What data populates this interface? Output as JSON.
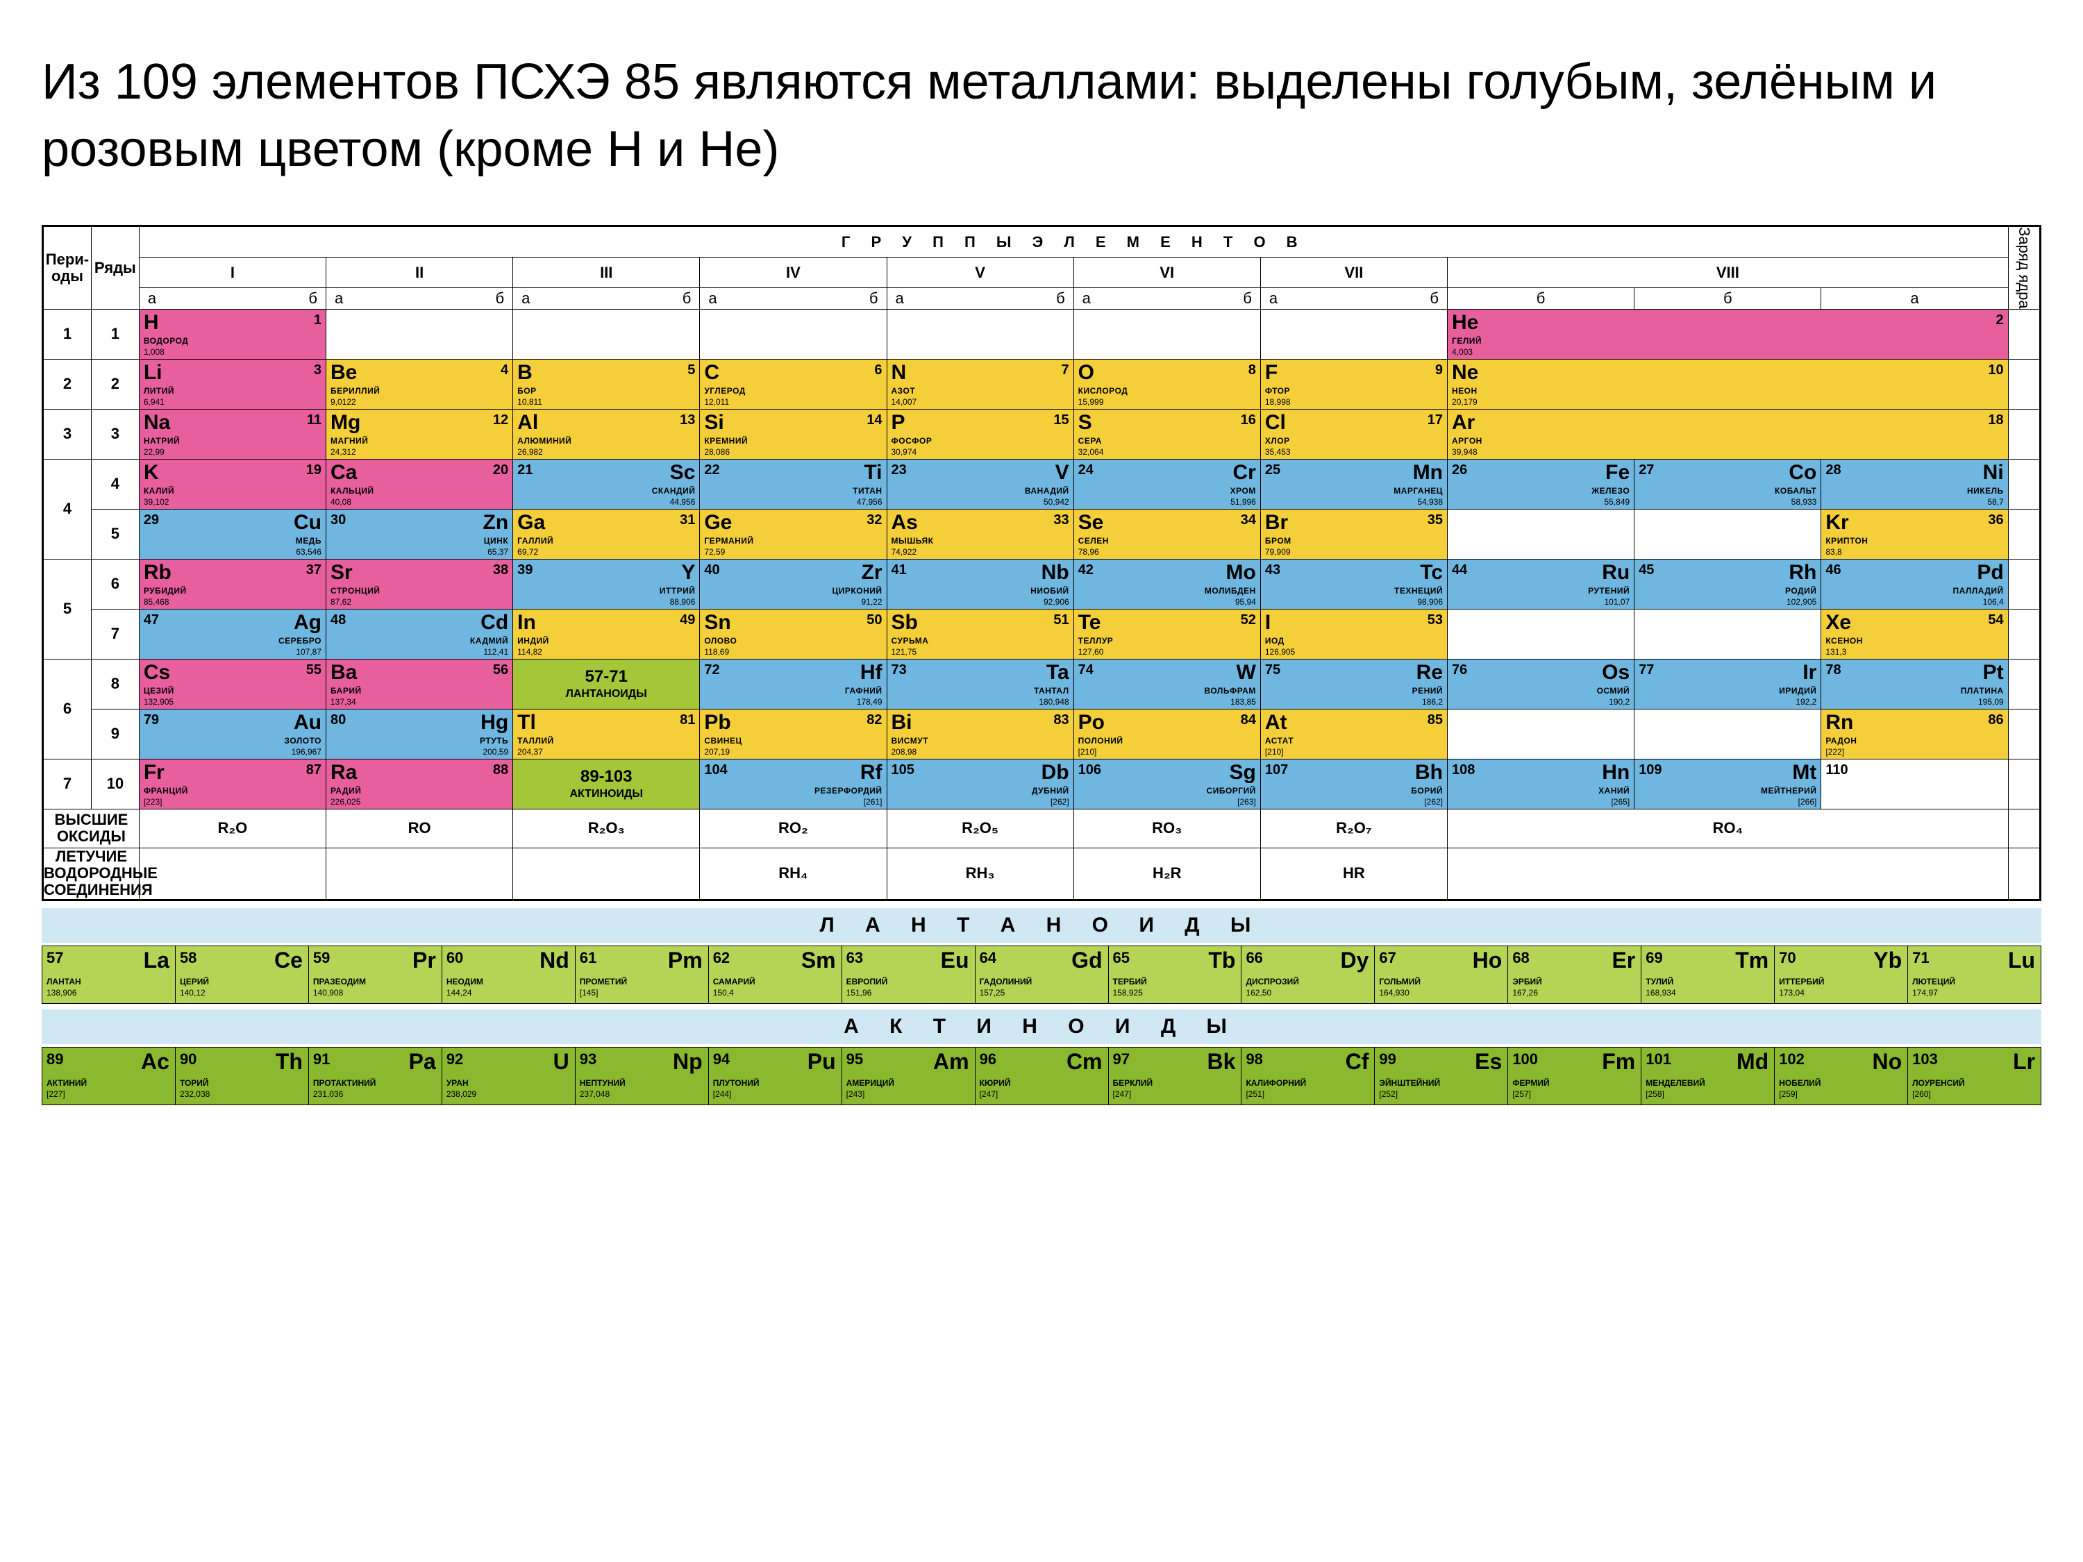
{
  "title": "Из 109 элементов ПСХЭ 85 являются металлами: выделены голубым, зелёным и розовым цветом (кроме H и He)",
  "colors": {
    "pink": "#e85f9e",
    "yellow": "#f4cf3a",
    "blue": "#6fb6e0",
    "green": "#a4c639",
    "dgreen": "#8ab82e",
    "white": "#ffffff",
    "lightband": "#cfe8f3"
  },
  "headers": {
    "periods": "Пери-\nоды",
    "rows": "Ряды",
    "groups_title": "Г Р У П П Ы   Э Л Е М Е Н Т О В",
    "groups": [
      "I",
      "II",
      "III",
      "IV",
      "V",
      "VI",
      "VII",
      "VIII"
    ],
    "sub": {
      "a": "а",
      "b": "б"
    },
    "right_side": "Заряд ядра"
  },
  "lan_cell_1": {
    "label": "57-71",
    "text": "ЛАНТАНОИДЫ"
  },
  "lan_cell_2": {
    "label": "89-103",
    "text": "АКТИНОИДЫ"
  },
  "oxides_label": "ВЫСШИЕ\nОКСИДЫ",
  "hydrides_label": "ЛЕТУЧИЕ\nВОДОРОДНЫЕ\nСОЕДИНЕНИЯ",
  "oxides": [
    "R₂O",
    "RO",
    "R₂O₃",
    "RO₂",
    "R₂O₅",
    "RO₃",
    "R₂O₇",
    "RO₄"
  ],
  "hydrides": [
    "",
    "",
    "",
    "RH₄",
    "RH₃",
    "H₂R",
    "HR",
    ""
  ],
  "series_titles": {
    "lan": "Л А Н Т А Н О И Д Ы",
    "act": "А К Т И Н О И Д Ы"
  },
  "lanthanides": [
    {
      "n": "57",
      "s": "La",
      "name": "ЛАНТАН",
      "m": "138,906"
    },
    {
      "n": "58",
      "s": "Ce",
      "name": "ЦЕРИЙ",
      "m": "140,12"
    },
    {
      "n": "59",
      "s": "Pr",
      "name": "ПРАЗЕОДИМ",
      "m": "140,908"
    },
    {
      "n": "60",
      "s": "Nd",
      "name": "НЕОДИМ",
      "m": "144,24"
    },
    {
      "n": "61",
      "s": "Pm",
      "name": "ПРОМЕТИЙ",
      "m": "[145]"
    },
    {
      "n": "62",
      "s": "Sm",
      "name": "САМАРИЙ",
      "m": "150,4"
    },
    {
      "n": "63",
      "s": "Eu",
      "name": "ЕВРОПИЙ",
      "m": "151,96"
    },
    {
      "n": "64",
      "s": "Gd",
      "name": "ГАДОЛИНИЙ",
      "m": "157,25"
    },
    {
      "n": "65",
      "s": "Tb",
      "name": "ТЕРБИЙ",
      "m": "158,925"
    },
    {
      "n": "66",
      "s": "Dy",
      "name": "ДИСПРОЗИЙ",
      "m": "162,50"
    },
    {
      "n": "67",
      "s": "Ho",
      "name": "ГОЛЬМИЙ",
      "m": "164,930"
    },
    {
      "n": "68",
      "s": "Er",
      "name": "ЭРБИЙ",
      "m": "167,26"
    },
    {
      "n": "69",
      "s": "Tm",
      "name": "ТУЛИЙ",
      "m": "168,934"
    },
    {
      "n": "70",
      "s": "Yb",
      "name": "ИТТЕРБИЙ",
      "m": "173,04"
    },
    {
      "n": "71",
      "s": "Lu",
      "name": "ЛЮТЕЦИЙ",
      "m": "174,97"
    }
  ],
  "actinides": [
    {
      "n": "89",
      "s": "Ac",
      "name": "АКТИНИЙ",
      "m": "[227]"
    },
    {
      "n": "90",
      "s": "Th",
      "name": "ТОРИЙ",
      "m": "232,038"
    },
    {
      "n": "91",
      "s": "Pa",
      "name": "ПРОТАКТИНИЙ",
      "m": "231,036"
    },
    {
      "n": "92",
      "s": "U",
      "name": "УРАН",
      "m": "238,029"
    },
    {
      "n": "93",
      "s": "Np",
      "name": "НЕПТУНИЙ",
      "m": "237,048"
    },
    {
      "n": "94",
      "s": "Pu",
      "name": "ПЛУТОНИЙ",
      "m": "[244]"
    },
    {
      "n": "95",
      "s": "Am",
      "name": "АМЕРИЦИЙ",
      "m": "[243]"
    },
    {
      "n": "96",
      "s": "Cm",
      "name": "КЮРИЙ",
      "m": "[247]"
    },
    {
      "n": "97",
      "s": "Bk",
      "name": "БЕРКЛИЙ",
      "m": "[247]"
    },
    {
      "n": "98",
      "s": "Cf",
      "name": "КАЛИФОРНИЙ",
      "m": "[251]"
    },
    {
      "n": "99",
      "s": "Es",
      "name": "ЭЙНШТЕЙНИЙ",
      "m": "[252]"
    },
    {
      "n": "100",
      "s": "Fm",
      "name": "ФЕРМИЙ",
      "m": "[257]"
    },
    {
      "n": "101",
      "s": "Md",
      "name": "МЕНДЕЛЕВИЙ",
      "m": "[258]"
    },
    {
      "n": "102",
      "s": "No",
      "name": "НОБЕЛИЙ",
      "m": "[259]"
    },
    {
      "n": "103",
      "s": "Lr",
      "name": "ЛОУРЕНСИЙ",
      "m": "[260]"
    }
  ],
  "rows": [
    {
      "period": "1",
      "row": "1",
      "cells": [
        {
          "g": 1,
          "sub": "a",
          "c": "pink",
          "n": "1",
          "s": "H",
          "name": "ВОДОРОД",
          "m": "1,008"
        },
        null,
        null,
        null,
        null,
        null,
        null,
        {
          "g": 8,
          "sub": "a",
          "span": 3,
          "c": "pink",
          "n": "2",
          "s": "He",
          "name": "ГЕЛИЙ",
          "m": "4,003"
        }
      ]
    },
    {
      "period": "2",
      "row": "2",
      "cells": [
        {
          "g": 1,
          "sub": "a",
          "c": "pink",
          "n": "3",
          "s": "Li",
          "name": "ЛИТИЙ",
          "m": "6,941"
        },
        {
          "g": 2,
          "sub": "a",
          "c": "yellow",
          "n": "4",
          "s": "Be",
          "name": "БЕРИЛЛИЙ",
          "m": "9,0122"
        },
        {
          "g": 3,
          "sub": "a",
          "c": "yellow",
          "n": "5",
          "s": "B",
          "name": "БОР",
          "m": "10,811"
        },
        {
          "g": 4,
          "sub": "a",
          "c": "yellow",
          "n": "6",
          "s": "C",
          "name": "УГЛЕРОД",
          "m": "12,011"
        },
        {
          "g": 5,
          "sub": "a",
          "c": "yellow",
          "n": "7",
          "s": "N",
          "name": "АЗОТ",
          "m": "14,007"
        },
        {
          "g": 6,
          "sub": "a",
          "c": "yellow",
          "n": "8",
          "s": "O",
          "name": "КИСЛОРОД",
          "m": "15,999"
        },
        {
          "g": 7,
          "sub": "a",
          "c": "yellow",
          "n": "9",
          "s": "F",
          "name": "ФТОР",
          "m": "18,998"
        },
        {
          "g": 8,
          "sub": "a",
          "span": 3,
          "c": "yellow",
          "n": "10",
          "s": "Ne",
          "name": "НЕОН",
          "m": "20,179"
        }
      ]
    },
    {
      "period": "3",
      "row": "3",
      "cells": [
        {
          "g": 1,
          "sub": "a",
          "c": "pink",
          "n": "11",
          "s": "Na",
          "name": "НАТРИЙ",
          "m": "22,99"
        },
        {
          "g": 2,
          "sub": "a",
          "c": "yellow",
          "n": "12",
          "s": "Mg",
          "name": "МАГНИЙ",
          "m": "24,312"
        },
        {
          "g": 3,
          "sub": "a",
          "c": "yellow",
          "n": "13",
          "s": "Al",
          "name": "АЛЮМИНИЙ",
          "m": "26,982"
        },
        {
          "g": 4,
          "sub": "a",
          "c": "yellow",
          "n": "14",
          "s": "Si",
          "name": "КРЕМНИЙ",
          "m": "28,086"
        },
        {
          "g": 5,
          "sub": "a",
          "c": "yellow",
          "n": "15",
          "s": "P",
          "name": "ФОСФОР",
          "m": "30,974"
        },
        {
          "g": 6,
          "sub": "a",
          "c": "yellow",
          "n": "16",
          "s": "S",
          "name": "СЕРА",
          "m": "32,064"
        },
        {
          "g": 7,
          "sub": "a",
          "c": "yellow",
          "n": "17",
          "s": "Cl",
          "name": "ХЛОР",
          "m": "35,453"
        },
        {
          "g": 8,
          "sub": "a",
          "span": 3,
          "c": "yellow",
          "n": "18",
          "s": "Ar",
          "name": "АРГОН",
          "m": "39,948"
        }
      ]
    },
    {
      "period": "4",
      "row": "4",
      "cells": [
        {
          "g": 1,
          "sub": "a",
          "c": "pink",
          "n": "19",
          "s": "K",
          "name": "КАЛИЙ",
          "m": "39,102"
        },
        {
          "g": 2,
          "sub": "a",
          "c": "pink",
          "n": "20",
          "s": "Ca",
          "name": "КАЛЬЦИЙ",
          "m": "40,08"
        },
        {
          "g": 3,
          "sub": "b",
          "c": "blue",
          "n": "21",
          "s": "Sc",
          "name": "СКАНДИЙ",
          "m": "44,956"
        },
        {
          "g": 4,
          "sub": "b",
          "c": "blue",
          "n": "22",
          "s": "Ti",
          "name": "ТИТАН",
          "m": "47,956"
        },
        {
          "g": 5,
          "sub": "b",
          "c": "blue",
          "n": "23",
          "s": "V",
          "name": "ВАНАДИЙ",
          "m": "50,942"
        },
        {
          "g": 6,
          "sub": "b",
          "c": "blue",
          "n": "24",
          "s": "Cr",
          "name": "ХРОМ",
          "m": "51,996"
        },
        {
          "g": 7,
          "sub": "b",
          "c": "blue",
          "n": "25",
          "s": "Mn",
          "name": "МАРГАНЕЦ",
          "m": "54,938"
        },
        {
          "g": 8,
          "sub": "b",
          "c": "blue",
          "n": "26",
          "s": "Fe",
          "name": "ЖЕЛЕЗО",
          "m": "55,849"
        },
        {
          "g": 8,
          "sub": "b",
          "c": "blue",
          "n": "27",
          "s": "Co",
          "name": "КОБАЛЬТ",
          "m": "58,933"
        },
        {
          "g": 8,
          "sub": "b",
          "c": "blue",
          "n": "28",
          "s": "Ni",
          "name": "НИКЕЛЬ",
          "m": "58,7"
        }
      ]
    },
    {
      "period": "4",
      "row": "5",
      "cells": [
        {
          "g": 1,
          "sub": "b",
          "c": "blue",
          "n": "29",
          "s": "Cu",
          "name": "МЕДЬ",
          "m": "63,546"
        },
        {
          "g": 2,
          "sub": "b",
          "c": "blue",
          "n": "30",
          "s": "Zn",
          "name": "ЦИНК",
          "m": "65,37"
        },
        {
          "g": 3,
          "sub": "a",
          "c": "yellow",
          "n": "31",
          "s": "Ga",
          "name": "ГАЛЛИЙ",
          "m": "69,72"
        },
        {
          "g": 4,
          "sub": "a",
          "c": "yellow",
          "n": "32",
          "s": "Ge",
          "name": "ГЕРМАНИЙ",
          "m": "72,59"
        },
        {
          "g": 5,
          "sub": "a",
          "c": "yellow",
          "n": "33",
          "s": "As",
          "name": "МЫШЬЯК",
          "m": "74,922"
        },
        {
          "g": 6,
          "sub": "a",
          "c": "yellow",
          "n": "34",
          "s": "Se",
          "name": "СЕЛЕН",
          "m": "78,96"
        },
        {
          "g": 7,
          "sub": "a",
          "c": "yellow",
          "n": "35",
          "s": "Br",
          "name": "БРОМ",
          "m": "79,909"
        },
        null,
        null,
        {
          "g": 8,
          "sub": "a",
          "c": "yellow",
          "n": "36",
          "s": "Kr",
          "name": "КРИПТОН",
          "m": "83,8"
        }
      ]
    },
    {
      "period": "5",
      "row": "6",
      "cells": [
        {
          "g": 1,
          "sub": "a",
          "c": "pink",
          "n": "37",
          "s": "Rb",
          "name": "РУБИДИЙ",
          "m": "85,468"
        },
        {
          "g": 2,
          "sub": "a",
          "c": "pink",
          "n": "38",
          "s": "Sr",
          "name": "СТРОНЦИЙ",
          "m": "87,62"
        },
        {
          "g": 3,
          "sub": "b",
          "c": "blue",
          "n": "39",
          "s": "Y",
          "name": "ИТТРИЙ",
          "m": "88,906"
        },
        {
          "g": 4,
          "sub": "b",
          "c": "blue",
          "n": "40",
          "s": "Zr",
          "name": "ЦИРКОНИЙ",
          "m": "91,22"
        },
        {
          "g": 5,
          "sub": "b",
          "c": "blue",
          "n": "41",
          "s": "Nb",
          "name": "НИОБИЙ",
          "m": "92,906"
        },
        {
          "g": 6,
          "sub": "b",
          "c": "blue",
          "n": "42",
          "s": "Mo",
          "name": "МОЛИБДЕН",
          "m": "95,94"
        },
        {
          "g": 7,
          "sub": "b",
          "c": "blue",
          "n": "43",
          "s": "Tc",
          "name": "ТЕХНЕЦИЙ",
          "m": "98,906"
        },
        {
          "g": 8,
          "sub": "b",
          "c": "blue",
          "n": "44",
          "s": "Ru",
          "name": "РУТЕНИЙ",
          "m": "101,07"
        },
        {
          "g": 8,
          "sub": "b",
          "c": "blue",
          "n": "45",
          "s": "Rh",
          "name": "РОДИЙ",
          "m": "102,905"
        },
        {
          "g": 8,
          "sub": "b",
          "c": "blue",
          "n": "46",
          "s": "Pd",
          "name": "ПАЛЛАДИЙ",
          "m": "106,4"
        }
      ]
    },
    {
      "period": "5",
      "row": "7",
      "cells": [
        {
          "g": 1,
          "sub": "b",
          "c": "blue",
          "n": "47",
          "s": "Ag",
          "name": "СЕРЕБРО",
          "m": "107,87"
        },
        {
          "g": 2,
          "sub": "b",
          "c": "blue",
          "n": "48",
          "s": "Cd",
          "name": "КАДМИЙ",
          "m": "112,41"
        },
        {
          "g": 3,
          "sub": "a",
          "c": "yellow",
          "n": "49",
          "s": "In",
          "name": "ИНДИЙ",
          "m": "114,82"
        },
        {
          "g": 4,
          "sub": "a",
          "c": "yellow",
          "n": "50",
          "s": "Sn",
          "name": "ОЛОВО",
          "m": "118,69"
        },
        {
          "g": 5,
          "sub": "a",
          "c": "yellow",
          "n": "51",
          "s": "Sb",
          "name": "СУРЬМА",
          "m": "121,75"
        },
        {
          "g": 6,
          "sub": "a",
          "c": "yellow",
          "n": "52",
          "s": "Te",
          "name": "ТЕЛЛУР",
          "m": "127,60"
        },
        {
          "g": 7,
          "sub": "a",
          "c": "yellow",
          "n": "53",
          "s": "I",
          "name": "ИОД",
          "m": "126,905"
        },
        null,
        null,
        {
          "g": 8,
          "sub": "a",
          "c": "yellow",
          "n": "54",
          "s": "Xe",
          "name": "КСЕНОН",
          "m": "131,3"
        }
      ]
    },
    {
      "period": "6",
      "row": "8",
      "cells": [
        {
          "g": 1,
          "sub": "a",
          "c": "pink",
          "n": "55",
          "s": "Cs",
          "name": "ЦЕЗИЙ",
          "m": "132,905"
        },
        {
          "g": 2,
          "sub": "a",
          "c": "pink",
          "n": "56",
          "s": "Ba",
          "name": "БАРИЙ",
          "m": "137,34"
        },
        {
          "lan": 1
        },
        {
          "g": 4,
          "sub": "b",
          "c": "blue",
          "n": "72",
          "s": "Hf",
          "name": "ГАФНИЙ",
          "m": "178,49"
        },
        {
          "g": 5,
          "sub": "b",
          "c": "blue",
          "n": "73",
          "s": "Ta",
          "name": "ТАНТАЛ",
          "m": "180,948"
        },
        {
          "g": 6,
          "sub": "b",
          "c": "blue",
          "n": "74",
          "s": "W",
          "name": "ВОЛЬФРАМ",
          "m": "183,85"
        },
        {
          "g": 7,
          "sub": "b",
          "c": "blue",
          "n": "75",
          "s": "Re",
          "name": "РЕНИЙ",
          "m": "186,2"
        },
        {
          "g": 8,
          "sub": "b",
          "c": "blue",
          "n": "76",
          "s": "Os",
          "name": "ОСМИЙ",
          "m": "190,2"
        },
        {
          "g": 8,
          "sub": "b",
          "c": "blue",
          "n": "77",
          "s": "Ir",
          "name": "ИРИДИЙ",
          "m": "192,2"
        },
        {
          "g": 8,
          "sub": "b",
          "c": "blue",
          "n": "78",
          "s": "Pt",
          "name": "ПЛАТИНА",
          "m": "195,09"
        }
      ]
    },
    {
      "period": "6",
      "row": "9",
      "cells": [
        {
          "g": 1,
          "sub": "b",
          "c": "blue",
          "n": "79",
          "s": "Au",
          "name": "ЗОЛОТО",
          "m": "196,967"
        },
        {
          "g": 2,
          "sub": "b",
          "c": "blue",
          "n": "80",
          "s": "Hg",
          "name": "РТУТЬ",
          "m": "200,59"
        },
        {
          "g": 3,
          "sub": "a",
          "c": "yellow",
          "n": "81",
          "s": "Tl",
          "name": "ТАЛЛИЙ",
          "m": "204,37"
        },
        {
          "g": 4,
          "sub": "a",
          "c": "yellow",
          "n": "82",
          "s": "Pb",
          "name": "СВИНЕЦ",
          "m": "207,19"
        },
        {
          "g": 5,
          "sub": "a",
          "c": "yellow",
          "n": "83",
          "s": "Bi",
          "name": "ВИСМУТ",
          "m": "208,98"
        },
        {
          "g": 6,
          "sub": "a",
          "c": "yellow",
          "n": "84",
          "s": "Po",
          "name": "ПОЛОНИЙ",
          "m": "[210]"
        },
        {
          "g": 7,
          "sub": "a",
          "c": "yellow",
          "n": "85",
          "s": "At",
          "name": "АСТАТ",
          "m": "[210]"
        },
        null,
        null,
        {
          "g": 8,
          "sub": "a",
          "c": "yellow",
          "n": "86",
          "s": "Rn",
          "name": "РАДОН",
          "m": "[222]"
        }
      ]
    },
    {
      "period": "7",
      "row": "10",
      "cells": [
        {
          "g": 1,
          "sub": "a",
          "c": "pink",
          "n": "87",
          "s": "Fr",
          "name": "ФРАНЦИЙ",
          "m": "[223]"
        },
        {
          "g": 2,
          "sub": "a",
          "c": "pink",
          "n": "88",
          "s": "Ra",
          "name": "РАДИЙ",
          "m": "226,025"
        },
        {
          "lan": 2
        },
        {
          "g": 4,
          "sub": "b",
          "c": "blue",
          "n": "104",
          "s": "Rf",
          "name": "РЕЗЕРФОРДИЙ",
          "m": "[261]"
        },
        {
          "g": 5,
          "sub": "b",
          "c": "blue",
          "n": "105",
          "s": "Db",
          "name": "ДУБНИЙ",
          "m": "[262]"
        },
        {
          "g": 6,
          "sub": "b",
          "c": "blue",
          "n": "106",
          "s": "Sg",
          "name": "СИБОРГИЙ",
          "m": "[263]"
        },
        {
          "g": 7,
          "sub": "b",
          "c": "blue",
          "n": "107",
          "s": "Bh",
          "name": "БОРИЙ",
          "m": "[262]"
        },
        {
          "g": 8,
          "sub": "b",
          "c": "blue",
          "n": "108",
          "s": "Hn",
          "name": "ХАНИЙ",
          "m": "[265]"
        },
        {
          "g": 8,
          "sub": "b",
          "c": "blue",
          "n": "109",
          "s": "Mt",
          "name": "МЕЙТНЕРИЙ",
          "m": "[266]"
        },
        {
          "g": 8,
          "sub": "b",
          "c": "white",
          "n": "110",
          "s": "",
          "name": "",
          "m": ""
        }
      ]
    }
  ]
}
